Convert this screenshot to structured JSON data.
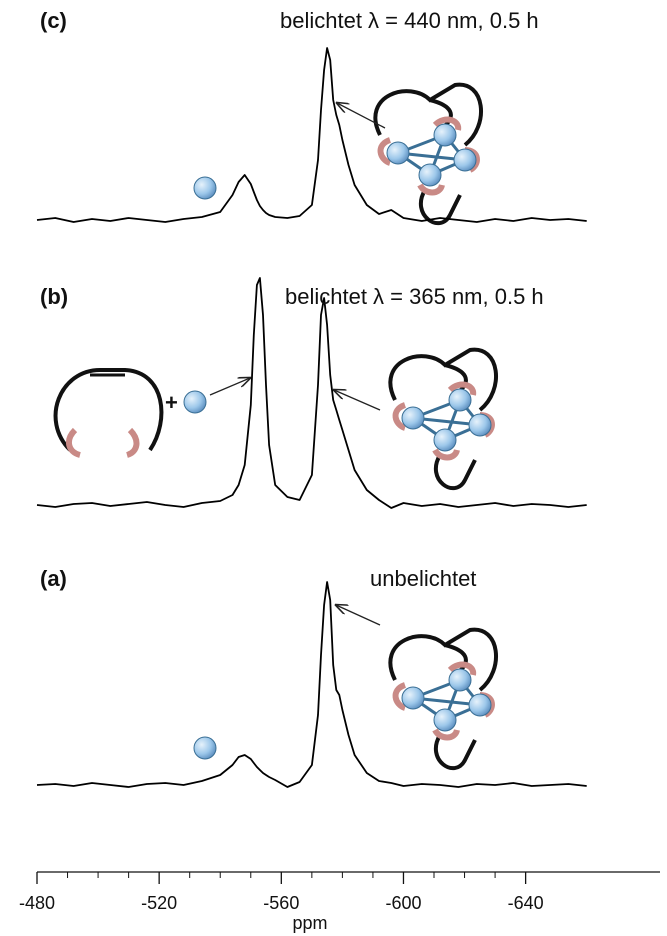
{
  "chart_data": {
    "type": "line",
    "xlabel": "ppm",
    "xlim": [
      -480,
      -684
    ],
    "xticks": [
      -480,
      -520,
      -560,
      -600,
      -640
    ],
    "x": [
      -480,
      -486,
      -492,
      -498,
      -504,
      -510,
      -516,
      -522,
      -528,
      -534,
      -540,
      -544,
      -546,
      -548,
      -550,
      -551,
      -552,
      -553,
      -554,
      -555,
      -556,
      -558,
      -562,
      -566,
      -570,
      -572,
      -573,
      -574,
      -575,
      -576,
      -577,
      -578,
      -579,
      -580,
      -582,
      -584,
      -588,
      -592,
      -596,
      -600,
      -606,
      -612,
      -618,
      -624,
      -630,
      -636,
      -642,
      -648,
      -654,
      -660
    ],
    "series": [
      {
        "name": "(c)",
        "annotation": "belichtet λ = 440 nm, 0.5 h",
        "color": "#000000",
        "values": [
          0,
          2,
          -2,
          1,
          -1,
          2,
          0,
          -2,
          1,
          3,
          8,
          25,
          38,
          45,
          36,
          28,
          20,
          14,
          10,
          7,
          5,
          3,
          2,
          4,
          15,
          60,
          110,
          150,
          172,
          160,
          120,
          105,
          95,
          80,
          55,
          35,
          15,
          6,
          10,
          2,
          -1,
          2,
          0,
          -2,
          1,
          -1,
          2,
          0,
          1,
          -1
        ]
      },
      {
        "name": "(b)",
        "annotation": "belichtet λ = 365 nm, 0.5 h",
        "color": "#000000",
        "values": [
          0,
          -2,
          1,
          2,
          -1,
          1,
          3,
          0,
          -2,
          2,
          4,
          10,
          20,
          40,
          100,
          170,
          220,
          227,
          190,
          120,
          60,
          20,
          8,
          5,
          30,
          120,
          190,
          207,
          180,
          130,
          105,
          95,
          85,
          75,
          55,
          35,
          15,
          5,
          -3,
          2,
          -1,
          1,
          -2,
          0,
          2,
          -1,
          1,
          0,
          -2,
          0
        ]
      },
      {
        "name": "(a)",
        "annotation": "unbelichtet",
        "color": "#000000",
        "values": [
          0,
          1,
          -1,
          2,
          0,
          -2,
          1,
          2,
          0,
          4,
          10,
          20,
          28,
          30,
          26,
          22,
          18,
          15,
          12,
          10,
          8,
          5,
          -2,
          3,
          20,
          70,
          130,
          180,
          203,
          185,
          120,
          95,
          90,
          75,
          50,
          30,
          12,
          4,
          2,
          -1,
          1,
          0,
          -2,
          1,
          0,
          2,
          -1,
          0,
          1,
          -1
        ]
      }
    ]
  }
}
